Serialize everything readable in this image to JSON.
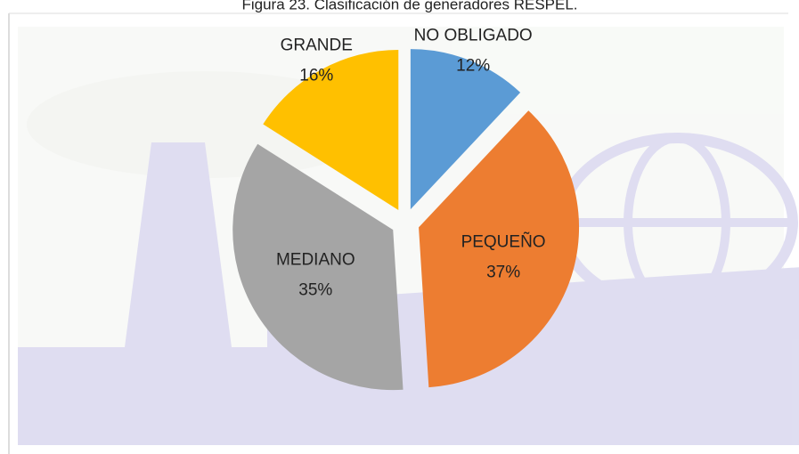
{
  "chart_data": {
    "type": "pie",
    "title": "Figura 23. Clasificación de generadores RESPEL.",
    "categories": [
      "NO OBLIGADO",
      "PEQUEÑO",
      "MEDIANO",
      "GRANDE"
    ],
    "values": [
      12,
      37,
      35,
      16
    ],
    "value_labels": [
      "12%",
      "37%",
      "35%",
      "16%"
    ],
    "colors": [
      "#5b9bd5",
      "#ed7d31",
      "#a5a5a5",
      "#ffc000"
    ]
  }
}
